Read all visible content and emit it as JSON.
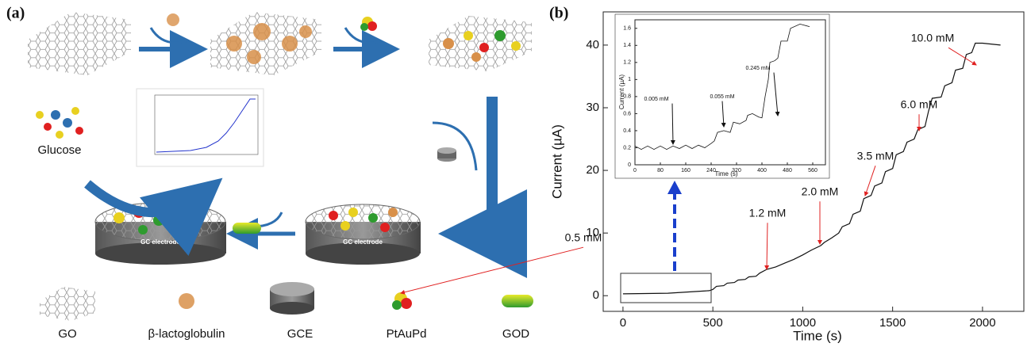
{
  "panel_labels": [
    "(a)",
    "(b)"
  ],
  "diagram": {
    "glucose_label": "Glucose",
    "electrode_label": "GC electrode",
    "legend": [
      "GO",
      "β-lactoglobulin",
      "GCE",
      "PtAuPd",
      "GOD"
    ]
  },
  "chart_data": [
    {
      "type": "line",
      "x_label": "Time (s)",
      "y_label": "Current (µA)",
      "color": "#111111",
      "x": [
        0,
        250,
        480,
        500,
        520,
        560,
        580,
        620,
        640,
        680,
        700,
        740,
        760,
        800,
        850,
        900,
        950,
        1000,
        1050,
        1100,
        1120,
        1160,
        1200,
        1220,
        1260,
        1280,
        1320,
        1340,
        1380,
        1400,
        1440,
        1460,
        1500,
        1520,
        1560,
        1580,
        1620,
        1640,
        1680,
        1700,
        1720,
        1770,
        1790,
        1830,
        1850,
        1890,
        1910,
        1940,
        1960,
        2000,
        2100
      ],
      "values": [
        0.3,
        0.4,
        0.8,
        1.0,
        1.5,
        1.6,
        2.0,
        2.1,
        2.5,
        2.6,
        3.0,
        3.1,
        3.6,
        4.2,
        4.6,
        5.2,
        5.8,
        6.5,
        7.3,
        8.0,
        8.5,
        9.2,
        10.0,
        11.0,
        11.5,
        13.0,
        13.5,
        15.5,
        16.0,
        17.5,
        18.0,
        19.8,
        20.3,
        22.5,
        23.0,
        24.5,
        25.0,
        26.5,
        27.0,
        29.5,
        31.5,
        31.7,
        33.5,
        34.0,
        36.0,
        36.3,
        38.5,
        38.8,
        40.3,
        40.3,
        40.0
      ],
      "xlim": [
        -110,
        2230
      ],
      "ylim": [
        -2.5,
        45.3
      ],
      "xticks": [
        0,
        500,
        1000,
        1500,
        2000
      ],
      "yticks": [
        0,
        10,
        20,
        30,
        40
      ],
      "annotations": [
        "0.5 mM",
        "1.2 mM",
        "2.0 mM",
        "3.5 mM",
        "6.0 mM",
        "10.0 mM"
      ]
    },
    {
      "type": "line",
      "x_label": "Time (s)",
      "y_label": "Current (µA)",
      "color": "#111111",
      "x": [
        0,
        20,
        40,
        60,
        80,
        100,
        120,
        140,
        160,
        180,
        200,
        220,
        240,
        250,
        260,
        280,
        300,
        310,
        330,
        350,
        355,
        370,
        390,
        400,
        410,
        420,
        425,
        440,
        450,
        460,
        480,
        490,
        520,
        550
      ],
      "values": [
        0.22,
        0.18,
        0.22,
        0.18,
        0.22,
        0.18,
        0.22,
        0.19,
        0.23,
        0.19,
        0.23,
        0.2,
        0.25,
        0.28,
        0.38,
        0.4,
        0.38,
        0.5,
        0.48,
        0.52,
        0.58,
        0.6,
        0.56,
        0.55,
        0.8,
        1.0,
        1.2,
        1.22,
        1.25,
        1.45,
        1.45,
        1.6,
        1.65,
        1.62
      ],
      "xlim": [
        0,
        600
      ],
      "ylim": [
        0,
        1.7
      ],
      "xticks": [
        0,
        80,
        160,
        240,
        320,
        400,
        480,
        560
      ],
      "yticks": [
        0,
        0.2,
        0.4,
        0.6,
        0.8,
        1,
        1.2,
        1.4,
        1.6
      ],
      "annotations": [
        "0.005 mM",
        "0.055 mM",
        "0.245 mM"
      ]
    }
  ]
}
